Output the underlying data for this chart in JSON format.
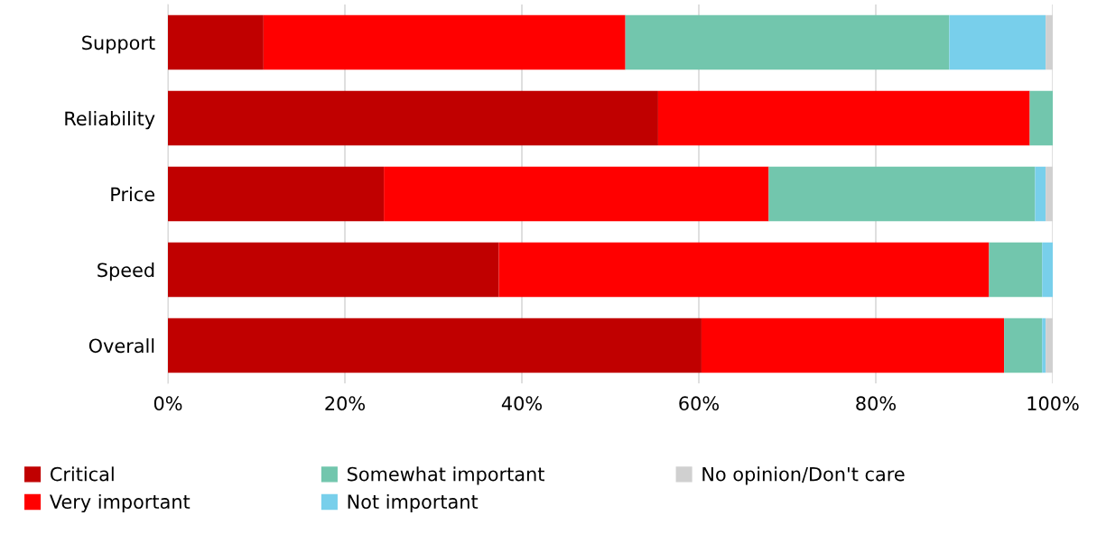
{
  "chart_data": {
    "type": "bar",
    "orientation": "horizontal",
    "stacked": true,
    "categories": [
      "Support",
      "Reliability",
      "Price",
      "Speed",
      "Overall"
    ],
    "series": [
      {
        "name": "Critical",
        "color": "#c00000",
        "values": [
          10.8,
          55.4,
          24.4,
          37.4,
          60.3
        ]
      },
      {
        "name": "Very important",
        "color": "#ff0000",
        "values": [
          40.9,
          42.0,
          43.5,
          55.4,
          34.2
        ]
      },
      {
        "name": "Somewhat important",
        "color": "#72c6ad",
        "values": [
          36.6,
          2.6,
          30.1,
          6.0,
          4.3
        ]
      },
      {
        "name": "Not important",
        "color": "#78cfeb",
        "values": [
          10.9,
          0,
          1.2,
          1.2,
          0.4
        ]
      },
      {
        "name": "No opinion/Don't care",
        "color": "#d0d0d0",
        "values": [
          0.8,
          0,
          0.8,
          0,
          0.8
        ]
      }
    ],
    "xlim": [
      0,
      100
    ],
    "xticks": [
      {
        "value": 0,
        "label": "0%"
      },
      {
        "value": 20,
        "label": "20%"
      },
      {
        "value": 40,
        "label": "40%"
      },
      {
        "value": 60,
        "label": "60%"
      },
      {
        "value": 80,
        "label": "80%"
      },
      {
        "value": 100,
        "label": "100%"
      }
    ],
    "grid": "x",
    "legend": "bottom"
  }
}
